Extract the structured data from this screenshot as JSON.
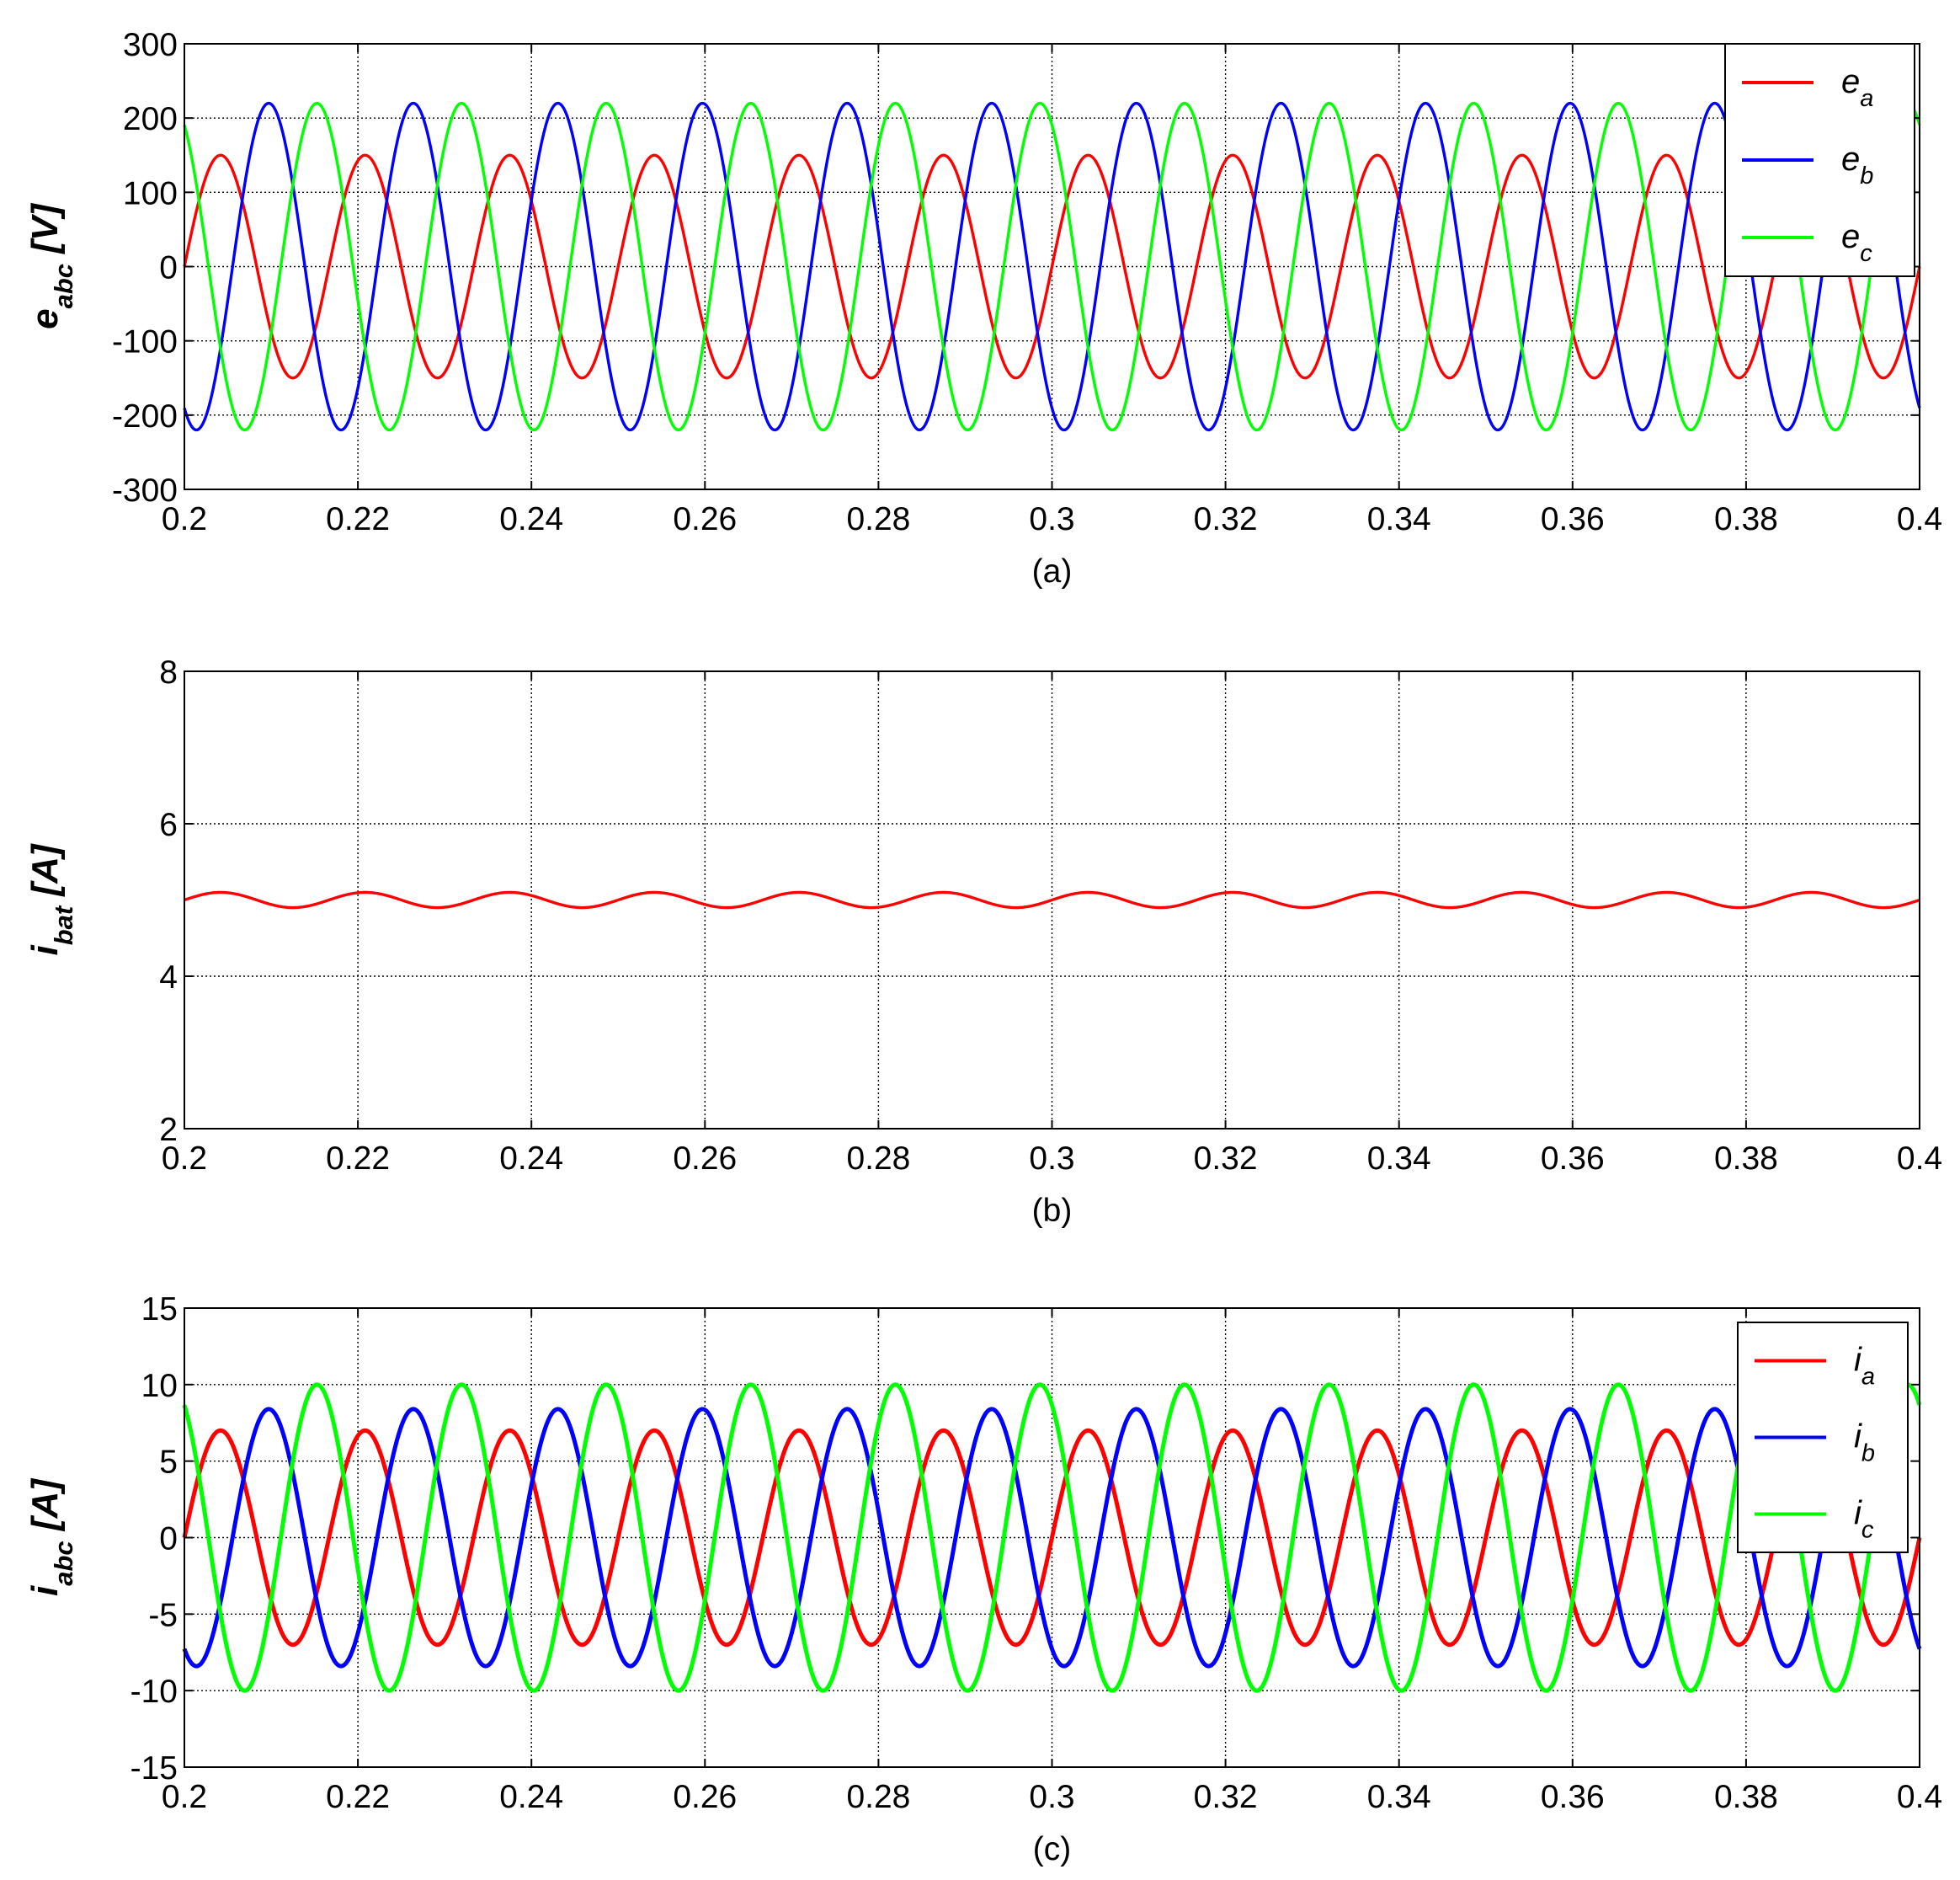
{
  "chart_data": [
    {
      "type": "line",
      "caption": "(a)",
      "ylabel": {
        "main": "e",
        "sub": "abc",
        "unit": "[V]"
      },
      "xlim": [
        0.2,
        0.4
      ],
      "ylim": [
        -300,
        300
      ],
      "xticks": [
        0.2,
        0.22,
        0.24,
        0.26,
        0.28,
        0.3,
        0.32,
        0.34,
        0.36,
        0.38,
        0.4
      ],
      "xtick_labels": [
        "0.2",
        "0.22",
        "0.24",
        "0.26",
        "0.28",
        "0.3",
        "0.32",
        "0.34",
        "0.36",
        "0.38",
        "0.4"
      ],
      "yticks": [
        -300,
        -200,
        -100,
        0,
        100,
        200,
        300
      ],
      "ytick_labels": [
        "-300",
        "-200",
        "-100",
        "0",
        "100",
        "200",
        "300"
      ],
      "grid": true,
      "legend_position": "top-right",
      "series": [
        {
          "name": "e",
          "sub": "a",
          "color": "#ff0000",
          "amplitude": 150,
          "frequency_hz": 60,
          "phase_deg": 0
        },
        {
          "name": "e",
          "sub": "b",
          "color": "#0000ff",
          "amplitude": 220,
          "frequency_hz": 60,
          "phase_deg": -120
        },
        {
          "name": "e",
          "sub": "c",
          "color": "#00ff00",
          "amplitude": 220,
          "frequency_hz": 60,
          "phase_deg": 120
        }
      ]
    },
    {
      "type": "line",
      "caption": "(b)",
      "ylabel": {
        "main": "i",
        "sub": "bat",
        "unit": "[A]"
      },
      "xlim": [
        0.2,
        0.4
      ],
      "ylim": [
        2,
        8
      ],
      "xticks": [
        0.2,
        0.22,
        0.24,
        0.26,
        0.28,
        0.3,
        0.32,
        0.34,
        0.36,
        0.38,
        0.4
      ],
      "xtick_labels": [
        "0.2",
        "0.22",
        "0.24",
        "0.26",
        "0.28",
        "0.3",
        "0.32",
        "0.34",
        "0.36",
        "0.38",
        "0.4"
      ],
      "yticks": [
        2,
        4,
        6,
        8
      ],
      "ytick_labels": [
        "2",
        "4",
        "6",
        "8"
      ],
      "grid": true,
      "series": [
        {
          "name": "i_bat",
          "color": "#ff0000",
          "mean": 5.0,
          "ripple_amplitude": 0.1,
          "ripple_frequency_hz": 60
        }
      ]
    },
    {
      "type": "line",
      "caption": "(c)",
      "ylabel": {
        "main": "i",
        "sub": "abc",
        "unit": "[A]"
      },
      "xlim": [
        0.2,
        0.4
      ],
      "ylim": [
        -15,
        15
      ],
      "xticks": [
        0.2,
        0.22,
        0.24,
        0.26,
        0.28,
        0.3,
        0.32,
        0.34,
        0.36,
        0.38,
        0.4
      ],
      "xtick_labels": [
        "0.2",
        "0.22",
        "0.24",
        "0.26",
        "0.28",
        "0.3",
        "0.32",
        "0.34",
        "0.36",
        "0.38",
        "0.4"
      ],
      "yticks": [
        -15,
        -10,
        -5,
        0,
        5,
        10,
        15
      ],
      "ytick_labels": [
        "-15",
        "-10",
        "-5",
        "0",
        "5",
        "10",
        "15"
      ],
      "grid": true,
      "legend_position": "top-right",
      "series": [
        {
          "name": "i",
          "sub": "a",
          "color": "#ff0000",
          "amplitude": 7,
          "frequency_hz": 60,
          "phase_deg": 0
        },
        {
          "name": "i",
          "sub": "b",
          "color": "#0000ff",
          "amplitude": 8.4,
          "frequency_hz": 60,
          "phase_deg": -120
        },
        {
          "name": "i",
          "sub": "c",
          "color": "#00ff00",
          "amplitude": 10,
          "frequency_hz": 60,
          "phase_deg": 120
        }
      ]
    }
  ]
}
